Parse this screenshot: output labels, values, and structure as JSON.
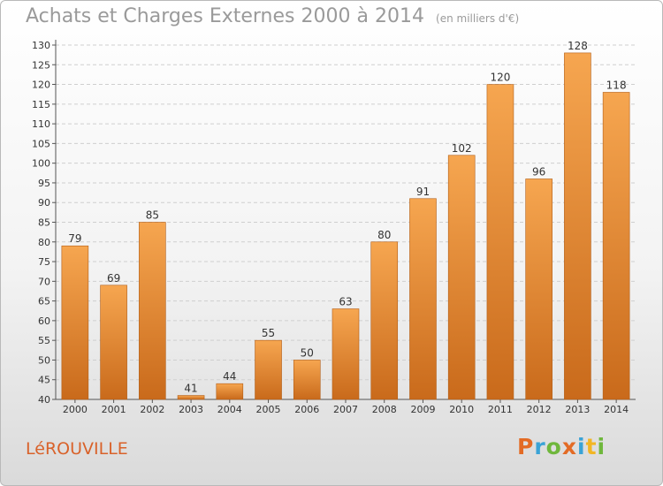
{
  "header": {
    "title": "Achats et Charges Externes 2000 à 2014",
    "unit": "(en milliers d'€)"
  },
  "footer": {
    "commune": "LéROUVILLE",
    "logo": {
      "letters": [
        {
          "char": "P",
          "color": "#e36b25"
        },
        {
          "char": "r",
          "color": "#3aa3d6"
        },
        {
          "char": "o",
          "color": "#6fb73c"
        },
        {
          "char": "x",
          "color": "#e36b25"
        },
        {
          "char": "i",
          "color": "#3aa3d6"
        },
        {
          "char": "t",
          "color": "#f2b624"
        },
        {
          "char": "i",
          "color": "#6fb73c"
        }
      ]
    }
  },
  "colors": {
    "bar_light": "#f6a650",
    "bar_dark": "#c96a1b",
    "grid": "#cfcfcf",
    "title": "#9a9a9a",
    "commune": "#d9622a"
  },
  "chart_data": {
    "type": "bar",
    "title": "Achats et Charges Externes 2000 à 2014",
    "subtitle": "(en milliers d'€)",
    "xlabel": "",
    "ylabel": "",
    "categories": [
      "2000",
      "2001",
      "2002",
      "2003",
      "2004",
      "2005",
      "2006",
      "2007",
      "2008",
      "2009",
      "2010",
      "2011",
      "2012",
      "2013",
      "2014"
    ],
    "values": [
      79,
      69,
      85,
      41,
      44,
      55,
      50,
      63,
      80,
      91,
      102,
      120,
      96,
      128,
      118
    ],
    "ylim": [
      40,
      130
    ],
    "ytick_step": 5,
    "grid": "horizontal dashed",
    "legend": "none"
  }
}
